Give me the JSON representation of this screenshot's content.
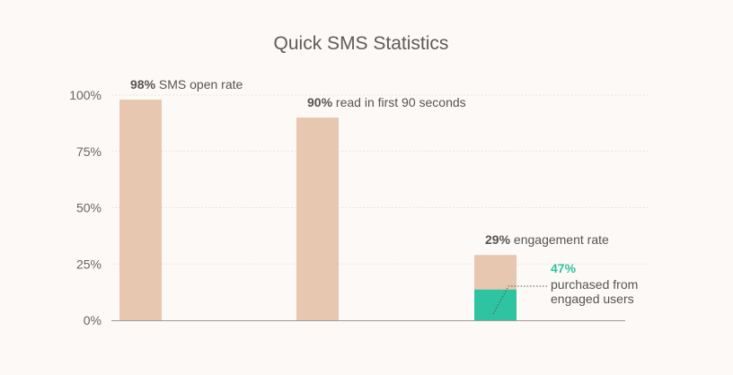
{
  "chart_data": {
    "type": "bar",
    "title": "Quick SMS Statistics",
    "xlabel": "",
    "ylabel": "",
    "ylim": [
      0,
      100
    ],
    "yticks": [
      {
        "value": 0,
        "label": "0%"
      },
      {
        "value": 25,
        "label": "25%"
      },
      {
        "value": 50,
        "label": "50%"
      },
      {
        "value": 75,
        "label": "75%"
      },
      {
        "value": 100,
        "label": "100%"
      }
    ],
    "grid": true,
    "bars": [
      {
        "value": 98,
        "bold": "98%",
        "text": " SMS open rate"
      },
      {
        "value": 90,
        "bold": "90%",
        "text": " read in first 90 seconds"
      },
      {
        "value": 29,
        "bold": "29%",
        "text": " engagement rate",
        "sub_value": 47
      }
    ],
    "annotation": {
      "percent": "47%",
      "lines": [
        "purchased from",
        "engaged users"
      ]
    },
    "colors": {
      "bar": "#e8c7b0",
      "highlight": "#2ec4a2",
      "background": "#fdf9f6"
    }
  }
}
